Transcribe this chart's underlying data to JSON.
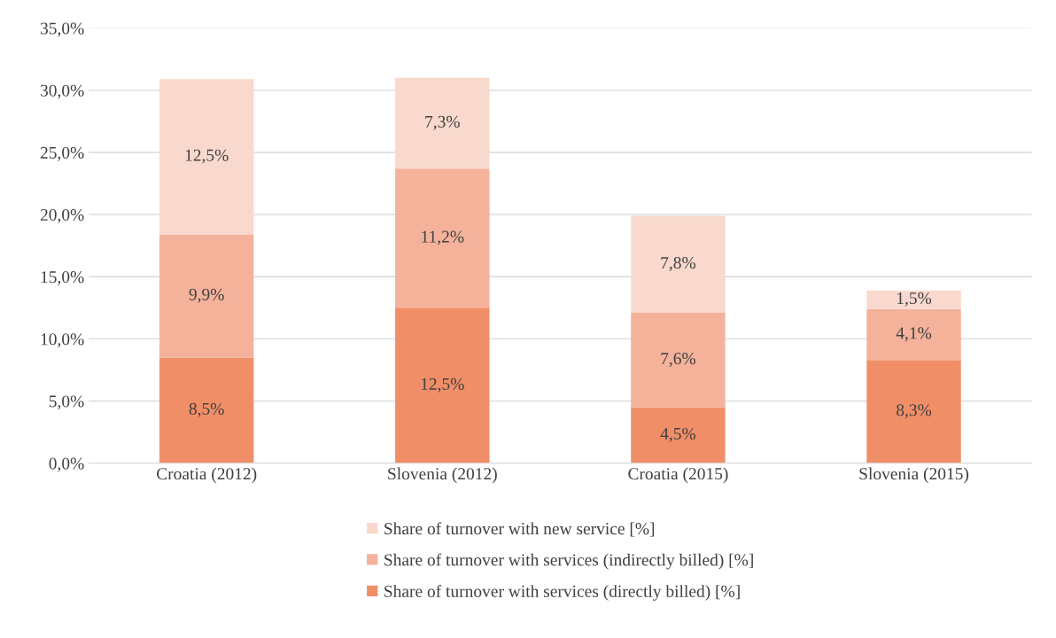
{
  "chart_data": {
    "type": "bar",
    "stacked": true,
    "categories": [
      "Croatia (2012)",
      "Slovenia (2012)",
      "Croatia (2015)",
      "Slovenia (2015)"
    ],
    "series": [
      {
        "name": "Share of turnover with services (directly billed) [%]",
        "color": "#f08e68",
        "values": [
          8.5,
          12.5,
          4.5,
          8.3
        ],
        "value_labels": [
          "8,5%",
          "12,5%",
          "4,5%",
          "8,3%"
        ]
      },
      {
        "name": "Share of turnover with services (indirectly billed) [%]",
        "color": "#f4b29b",
        "values": [
          9.9,
          11.2,
          7.6,
          4.1
        ],
        "value_labels": [
          "9,9%",
          "11,2%",
          "7,6%",
          "4,1%"
        ]
      },
      {
        "name": "Share of turnover with new service [%]",
        "color": "#f9d9cd",
        "values": [
          12.5,
          7.3,
          7.8,
          1.5
        ],
        "value_labels": [
          "12,5%",
          "7,3%",
          "7,8%",
          "1,5%"
        ]
      }
    ],
    "ylim": [
      0,
      35
    ],
    "yticks": [
      {
        "value": 0,
        "label": "0,0%"
      },
      {
        "value": 5,
        "label": "5,0%"
      },
      {
        "value": 10,
        "label": "10,0%"
      },
      {
        "value": 15,
        "label": "15,0%"
      },
      {
        "value": 20,
        "label": "20,0%"
      },
      {
        "value": 25,
        "label": "25,0%"
      },
      {
        "value": 30,
        "label": "30,0%"
      },
      {
        "value": 35,
        "label": "35,0%"
      }
    ],
    "grid": "y",
    "legend": "bottom"
  }
}
